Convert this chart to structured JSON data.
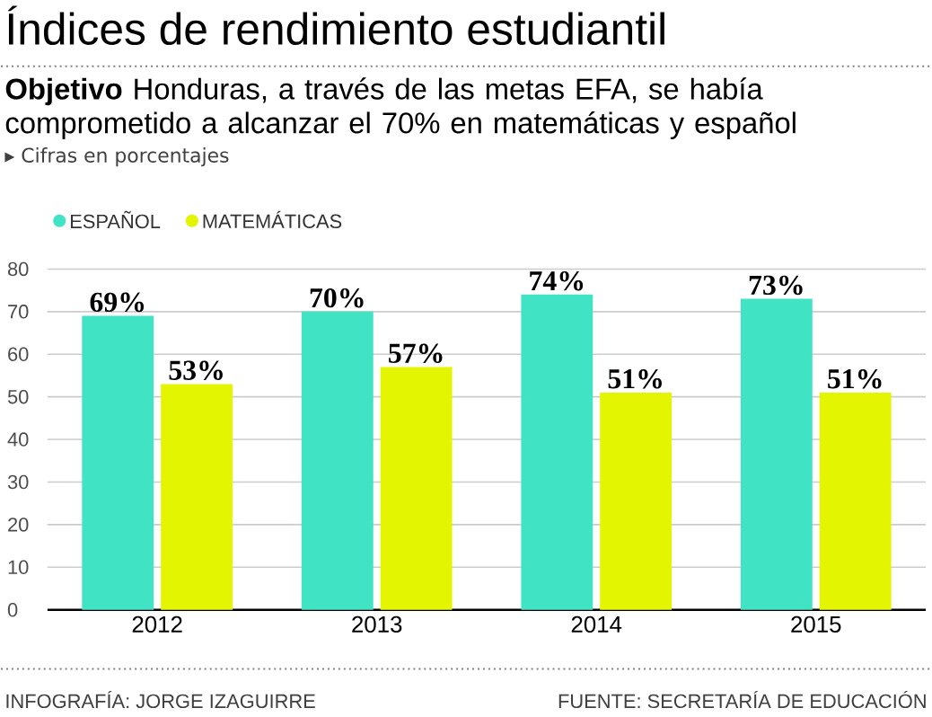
{
  "chart_data": {
    "type": "bar",
    "title": "Índices de rendimiento estudiantil",
    "subtitle": "**Objetivo** Honduras, a través de las metas EFA, se había comprometido a alcanzar el 70% en matemáticas y español",
    "annotations": [
      "▸ Cifras en porcentajes",
      "INFOGRAFÍA: JORGE IZAGUIRRE",
      "FUENTE: SECRETARÍA DE EDUCACIÓN"
    ],
    "categories": [
      "2012",
      "2013",
      "2014",
      "2015"
    ],
    "series": [
      {
        "name": "ESPAÑOL",
        "color": "#40e3c3",
        "values": [
          69,
          70,
          74,
          73
        ],
        "value_labels": [
          "69%",
          "70%",
          "74%",
          "73%"
        ]
      },
      {
        "name": "MATEMÁTICAS",
        "color": "#e3f500",
        "values": [
          53,
          57,
          51,
          51
        ],
        "value_labels": [
          "53%",
          "57%",
          "51%",
          "51%"
        ]
      }
    ],
    "ylim": [
      0,
      80
    ],
    "yticks": [
      0,
      10,
      20,
      30,
      40,
      50,
      60,
      70,
      80
    ],
    "grid": "y",
    "legend": "top left"
  }
}
